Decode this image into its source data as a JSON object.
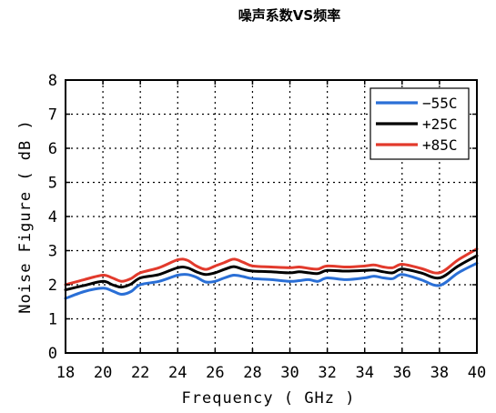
{
  "chart_data": {
    "type": "line",
    "title": "噪声系数VS频率",
    "xlabel": "Frequency ( GHz )",
    "ylabel": "Noise Figure ( dB )",
    "xlim": [
      18,
      40
    ],
    "ylim": [
      0,
      8
    ],
    "xticks": [
      "18",
      "20",
      "22",
      "24",
      "26",
      "28",
      "30",
      "32",
      "34",
      "36",
      "38",
      "40"
    ],
    "yticks": [
      "0",
      "1",
      "2",
      "3",
      "4",
      "5",
      "6",
      "7",
      "8"
    ],
    "grid": true,
    "legend_position": "top-right",
    "x": [
      18,
      19,
      20,
      20.5,
      21,
      21.5,
      22,
      23,
      24,
      24.5,
      25,
      25.5,
      26,
      26.5,
      27,
      27.5,
      28,
      29,
      30,
      30.5,
      31,
      31.5,
      32,
      33,
      34,
      34.5,
      35,
      35.5,
      36,
      37,
      38,
      39,
      40
    ],
    "series": [
      {
        "name": "−55C",
        "color": "#2a6fd6",
        "values": [
          1.6,
          1.8,
          1.9,
          1.82,
          1.72,
          1.8,
          2.0,
          2.1,
          2.28,
          2.3,
          2.22,
          2.08,
          2.1,
          2.2,
          2.28,
          2.24,
          2.18,
          2.15,
          2.1,
          2.12,
          2.15,
          2.1,
          2.2,
          2.15,
          2.2,
          2.25,
          2.2,
          2.18,
          2.3,
          2.15,
          1.98,
          2.35,
          2.63
        ]
      },
      {
        "name": "+25C",
        "color": "#000000",
        "values": [
          1.85,
          1.98,
          2.1,
          2.0,
          1.93,
          2.02,
          2.2,
          2.3,
          2.5,
          2.5,
          2.38,
          2.3,
          2.35,
          2.45,
          2.53,
          2.45,
          2.4,
          2.38,
          2.35,
          2.38,
          2.35,
          2.33,
          2.42,
          2.4,
          2.42,
          2.43,
          2.38,
          2.35,
          2.46,
          2.35,
          2.2,
          2.55,
          2.85
        ]
      },
      {
        "name": "+85C",
        "color": "#e23a2c",
        "values": [
          2.0,
          2.15,
          2.28,
          2.2,
          2.1,
          2.18,
          2.35,
          2.5,
          2.73,
          2.72,
          2.55,
          2.45,
          2.55,
          2.65,
          2.75,
          2.66,
          2.55,
          2.52,
          2.5,
          2.52,
          2.48,
          2.46,
          2.55,
          2.52,
          2.55,
          2.58,
          2.52,
          2.5,
          2.6,
          2.48,
          2.35,
          2.73,
          3.05
        ]
      }
    ]
  }
}
